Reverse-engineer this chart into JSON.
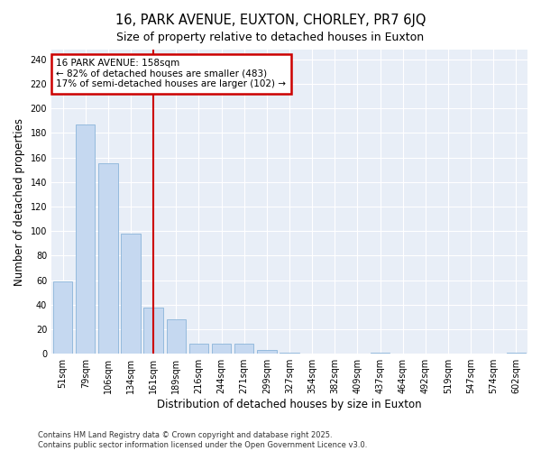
{
  "title": "16, PARK AVENUE, EUXTON, CHORLEY, PR7 6JQ",
  "subtitle": "Size of property relative to detached houses in Euxton",
  "xlabel": "Distribution of detached houses by size in Euxton",
  "ylabel": "Number of detached properties",
  "categories": [
    "51sqm",
    "79sqm",
    "106sqm",
    "134sqm",
    "161sqm",
    "189sqm",
    "216sqm",
    "244sqm",
    "271sqm",
    "299sqm",
    "327sqm",
    "354sqm",
    "382sqm",
    "409sqm",
    "437sqm",
    "464sqm",
    "492sqm",
    "519sqm",
    "547sqm",
    "574sqm",
    "602sqm"
  ],
  "values": [
    59,
    187,
    155,
    98,
    38,
    28,
    8,
    8,
    8,
    3,
    1,
    0,
    0,
    0,
    1,
    0,
    0,
    0,
    0,
    0,
    1
  ],
  "bar_color": "#c5d8f0",
  "bar_edge_color": "#8ab4d9",
  "vline_x_index": 4,
  "vline_color": "#cc0000",
  "annotation_title": "16 PARK AVENUE: 158sqm",
  "annotation_line1": "← 82% of detached houses are smaller (483)",
  "annotation_line2": "17% of semi-detached houses are larger (102) →",
  "annotation_box_color": "#cc0000",
  "ylim": [
    0,
    248
  ],
  "yticks": [
    0,
    20,
    40,
    60,
    80,
    100,
    120,
    140,
    160,
    180,
    200,
    220,
    240
  ],
  "background_color": "#e8eef7",
  "grid_color": "#ffffff",
  "footer1": "Contains HM Land Registry data © Crown copyright and database right 2025.",
  "footer2": "Contains public sector information licensed under the Open Government Licence v3.0.",
  "title_fontsize": 10.5,
  "subtitle_fontsize": 9,
  "ann_fontsize": 7.5,
  "tick_fontsize": 7,
  "label_fontsize": 8.5,
  "footer_fontsize": 6
}
